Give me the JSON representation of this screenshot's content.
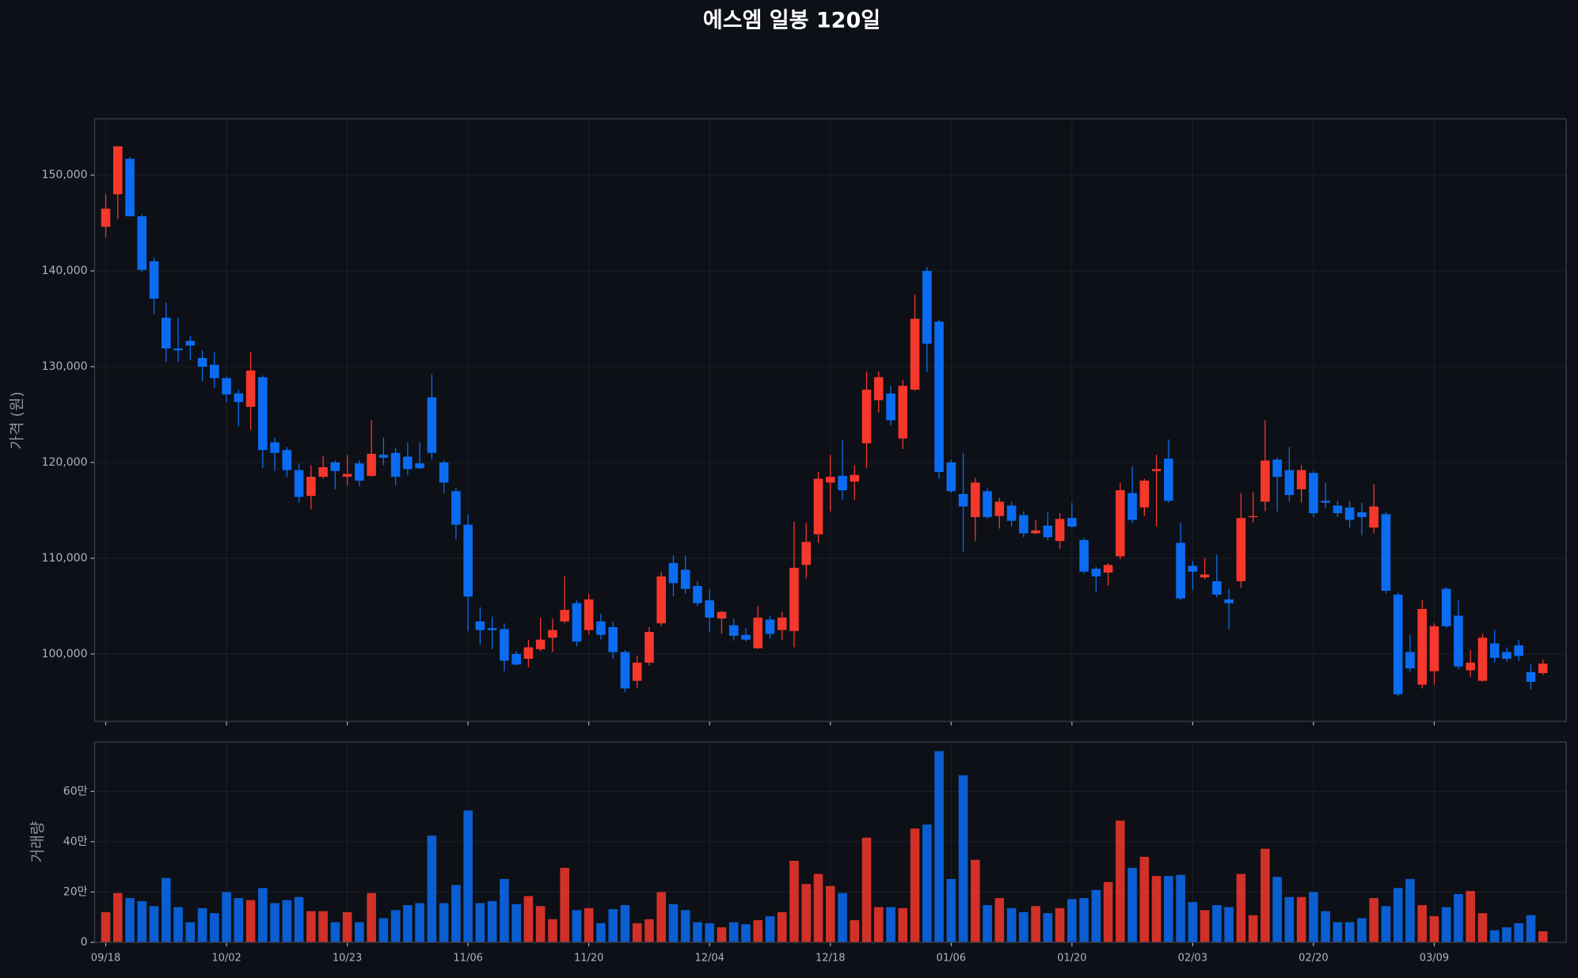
{
  "chart_data": [
    {
      "type": "candlestick",
      "title": "에스엠 일봉 120일",
      "ylabel": "가격 (원)",
      "open": [
        144600,
        148000,
        151700,
        145700,
        141000,
        135100,
        131900,
        132700,
        130900,
        130200,
        128800,
        127200,
        125800,
        128900,
        122100,
        121300,
        119200,
        116500,
        118500,
        120000,
        118500,
        119900,
        118600,
        120800,
        121000,
        120600,
        119900,
        126800,
        120000,
        117000,
        113500,
        103400,
        102700,
        102600,
        100000,
        99500,
        100500,
        101700,
        103400,
        105300,
        102500,
        103400,
        102800,
        100200,
        97200,
        99100,
        103200,
        109500,
        108800,
        107100,
        105600,
        103700,
        103000,
        102000,
        100600,
        103600,
        102500,
        102400,
        109300,
        112500,
        117900,
        118600,
        118000,
        122000,
        126500,
        127200,
        122500,
        127600,
        140000,
        134700,
        120000,
        116700,
        114300,
        117000,
        114400,
        115500,
        114500,
        112600,
        113400,
        111800,
        114200,
        111900,
        108900,
        108500,
        110200,
        116800,
        115300,
        119100,
        120400,
        111600,
        109200,
        108000,
        107600,
        105700,
        107600,
        114300,
        115900,
        120300,
        119200,
        117200,
        118900,
        116000,
        115500,
        115300,
        114800,
        113200,
        114600,
        106200,
        100200,
        96800,
        98200,
        106800,
        104000,
        98300,
        97200,
        101100,
        100200,
        100900,
        98100,
        98000
      ],
      "high": [
        148000,
        153000,
        151900,
        145900,
        141400,
        136700,
        135100,
        133200,
        131700,
        131500,
        129000,
        127600,
        131500,
        129100,
        122600,
        121600,
        119900,
        119700,
        120700,
        120200,
        120800,
        120200,
        124400,
        122600,
        121500,
        122100,
        122100,
        129200,
        120200,
        117300,
        114600,
        104900,
        103900,
        103200,
        100300,
        101500,
        103800,
        103700,
        108100,
        105600,
        106300,
        104200,
        103400,
        100400,
        99800,
        102800,
        108600,
        110300,
        110300,
        107600,
        106800,
        104500,
        103700,
        102700,
        105000,
        104000,
        104400,
        113800,
        113700,
        119000,
        120800,
        122300,
        119700,
        129500,
        129500,
        128000,
        128600,
        137500,
        140400,
        134900,
        120300,
        121000,
        118400,
        117300,
        116300,
        115900,
        114900,
        114000,
        114800,
        114700,
        115800,
        112100,
        109100,
        109500,
        117900,
        119600,
        118300,
        120800,
        122400,
        113700,
        109700,
        110000,
        110400,
        106800,
        116800,
        116900,
        124400,
        120500,
        121600,
        119700,
        119100,
        117900,
        116000,
        116000,
        115800,
        117700,
        114800,
        106400,
        102000,
        105600,
        103200,
        107000,
        105600,
        100400,
        102100,
        102500,
        100700,
        101500,
        98900,
        99400
      ],
      "low": [
        143500,
        145400,
        145700,
        139900,
        135500,
        130500,
        130500,
        130700,
        128500,
        127800,
        126300,
        123800,
        123400,
        119400,
        119100,
        118500,
        115800,
        115100,
        118300,
        117200,
        117600,
        117500,
        118500,
        119700,
        117600,
        118700,
        119300,
        120300,
        116800,
        112000,
        102400,
        101000,
        100500,
        98200,
        98800,
        98600,
        100300,
        100200,
        103200,
        100800,
        102000,
        101500,
        99500,
        96000,
        96400,
        98800,
        102900,
        106000,
        106300,
        105000,
        102300,
        102100,
        101400,
        101300,
        100500,
        101600,
        101500,
        100700,
        107900,
        111600,
        114900,
        116100,
        116100,
        119400,
        125200,
        123900,
        121400,
        127500,
        129400,
        118300,
        116800,
        110700,
        111800,
        114100,
        113100,
        113300,
        112200,
        112500,
        111900,
        111000,
        113200,
        108400,
        106400,
        107100,
        109900,
        113700,
        114400,
        113300,
        115800,
        105600,
        106700,
        107800,
        105900,
        102600,
        106900,
        113700,
        114900,
        114900,
        115900,
        115800,
        114300,
        115200,
        114300,
        113200,
        112400,
        112600,
        106300,
        95600,
        98100,
        96400,
        96800,
        102700,
        98400,
        97600,
        97100,
        99100,
        99200,
        99300,
        96300,
        97800
      ],
      "close": [
        146500,
        153000,
        145700,
        140100,
        137100,
        131900,
        131700,
        132200,
        130000,
        128800,
        127100,
        126300,
        129600,
        121300,
        121000,
        119200,
        116400,
        118500,
        119500,
        119100,
        118800,
        118100,
        120900,
        120500,
        118500,
        119300,
        119400,
        121000,
        117900,
        113500,
        106000,
        102500,
        102500,
        99300,
        98900,
        100700,
        101500,
        102500,
        104600,
        101300,
        105700,
        102000,
        100200,
        96400,
        99100,
        102300,
        108100,
        107400,
        106800,
        105300,
        103800,
        104400,
        101900,
        101500,
        103800,
        102100,
        103800,
        109000,
        111700,
        118300,
        118500,
        117100,
        118700,
        127600,
        128900,
        124400,
        128000,
        135000,
        132400,
        119000,
        117000,
        115400,
        117900,
        114300,
        115900,
        113900,
        112600,
        112900,
        112200,
        114100,
        113300,
        108600,
        108100,
        109300,
        117100,
        114000,
        118100,
        119300,
        116000,
        105800,
        108600,
        108300,
        106200,
        105300,
        114200,
        114400,
        120200,
        118500,
        116600,
        119200,
        114700,
        115800,
        114700,
        114000,
        114300,
        115400,
        106600,
        95800,
        98500,
        104700,
        102900,
        102900,
        98700,
        99100,
        101700,
        99600,
        99500,
        99800,
        97100,
        99000
      ],
      "up_color": "#f5372c",
      "down_color": "#0b6cf2",
      "ylim": [
        92960,
        155880
      ],
      "yticks": [
        {
          "value": 100000,
          "label": "100,000"
        },
        {
          "value": 110000,
          "label": "110,000"
        },
        {
          "value": 120000,
          "label": "120,000"
        },
        {
          "value": 130000,
          "label": "130,000"
        },
        {
          "value": 140000,
          "label": "140,000"
        },
        {
          "value": 150000,
          "label": "150,000"
        }
      ],
      "grid": true
    },
    {
      "type": "bar",
      "ylabel": "거래량",
      "categories": [
        "09/18",
        null,
        null,
        null,
        null,
        null,
        null,
        null,
        null,
        null,
        "10/02",
        null,
        null,
        null,
        null,
        null,
        null,
        null,
        null,
        null,
        "10/23",
        null,
        null,
        null,
        null,
        null,
        null,
        null,
        null,
        null,
        "11/06",
        null,
        null,
        null,
        null,
        null,
        null,
        null,
        null,
        null,
        "11/20",
        null,
        null,
        null,
        null,
        null,
        null,
        null,
        null,
        null,
        "12/04",
        null,
        null,
        null,
        null,
        null,
        null,
        null,
        null,
        null,
        "12/18",
        null,
        null,
        null,
        null,
        null,
        null,
        null,
        null,
        null,
        "01/06",
        null,
        null,
        null,
        null,
        null,
        null,
        null,
        null,
        null,
        "01/20",
        null,
        null,
        null,
        null,
        null,
        null,
        null,
        null,
        null,
        "02/03",
        null,
        null,
        null,
        null,
        null,
        null,
        null,
        null,
        null,
        "02/20",
        null,
        null,
        null,
        null,
        null,
        null,
        null,
        null,
        null,
        "03/09",
        null,
        null,
        null,
        null,
        null,
        null,
        null,
        null,
        null
      ],
      "values": [
        120000,
        196000,
        176000,
        164000,
        144000,
        256000,
        140000,
        80000,
        136000,
        116000,
        200000,
        176000,
        168000,
        216000,
        156000,
        168000,
        180000,
        124000,
        124000,
        80000,
        120000,
        80000,
        196000,
        96000,
        128000,
        148000,
        156000,
        424000,
        156000,
        228000,
        524000,
        156000,
        164000,
        252000,
        152000,
        184000,
        144000,
        92000,
        296000,
        128000,
        136000,
        76000,
        132000,
        148000,
        76000,
        92000,
        200000,
        152000,
        128000,
        80000,
        76000,
        60000,
        80000,
        72000,
        88000,
        104000,
        120000,
        324000,
        232000,
        272000,
        224000,
        196000,
        88000,
        416000,
        140000,
        140000,
        136000,
        452000,
        468000,
        760000,
        252000,
        664000,
        328000,
        148000,
        176000,
        136000,
        120000,
        144000,
        116000,
        136000,
        172000,
        176000,
        208000,
        240000,
        484000,
        296000,
        340000,
        264000,
        264000,
        268000,
        160000,
        128000,
        148000,
        140000,
        272000,
        108000,
        372000,
        260000,
        180000,
        180000,
        200000,
        124000,
        80000,
        80000,
        96000,
        176000,
        144000,
        216000,
        252000,
        148000,
        104000,
        140000,
        192000,
        204000,
        116000,
        48000,
        60000,
        76000,
        108000,
        44000
      ],
      "ylim": [
        0,
        796000
      ],
      "yticks": [
        0,
        {
          "value": 200000,
          "label": "20만"
        },
        {
          "value": 400000,
          "label": "40만"
        },
        {
          "value": 600000,
          "label": "60만"
        }
      ],
      "grid": true
    }
  ]
}
